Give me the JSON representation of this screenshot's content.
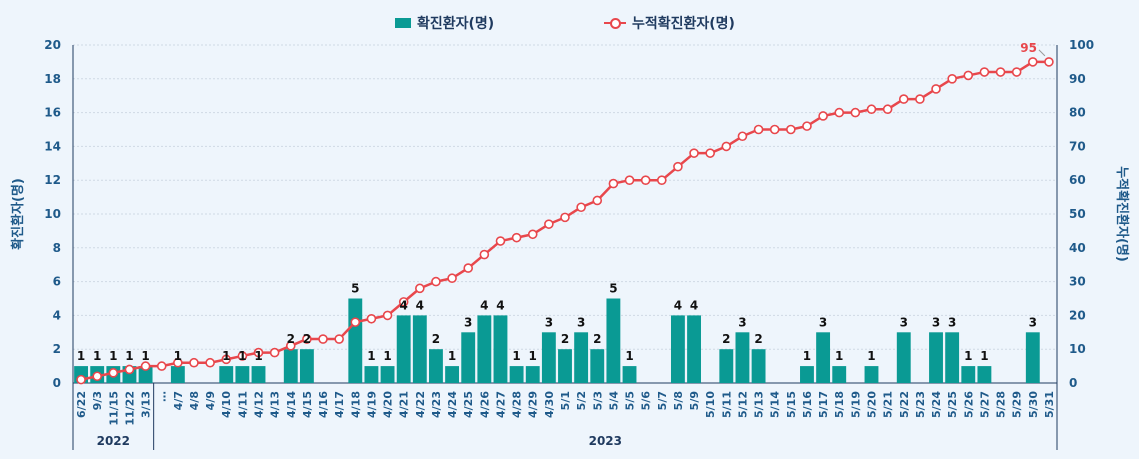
{
  "chart_data": {
    "type": "bar+line",
    "legend": {
      "bar_label": "확진환자(명)",
      "line_label": "누적확진환자(명)",
      "placement": "top-center"
    },
    "colors": {
      "bar": "#0a9a94",
      "line": "#e8474c",
      "axis_text": "#1f5a8a",
      "year_text": "#1f3a5f"
    },
    "ylabel_left": "확진환자(명)",
    "ylabel_right": "누적확진환자(명)",
    "ylim_left": [
      0,
      20
    ],
    "ylim_right": [
      0,
      100
    ],
    "yticks_left": [
      "0",
      "2",
      "4",
      "6",
      "8",
      "10",
      "12",
      "14",
      "16",
      "18",
      "20"
    ],
    "yticks_right": [
      "0",
      "10",
      "20",
      "30",
      "40",
      "50",
      "60",
      "70",
      "80",
      "90",
      "100"
    ],
    "grid": true,
    "categories": [
      "6/22",
      "9/3",
      "11/15",
      "11/22",
      "3/13",
      "…",
      "4/7",
      "4/8",
      "4/9",
      "4/10",
      "4/11",
      "4/12",
      "4/13",
      "4/14",
      "4/15",
      "4/16",
      "4/17",
      "4/18",
      "4/19",
      "4/20",
      "4/21",
      "4/22",
      "4/23",
      "4/24",
      "4/25",
      "4/26",
      "4/27",
      "4/28",
      "4/29",
      "4/30",
      "5/1",
      "5/2",
      "5/3",
      "5/4",
      "5/5",
      "5/6",
      "5/7",
      "5/8",
      "5/9",
      "5/10",
      "5/11",
      "5/12",
      "5/13",
      "5/14",
      "5/15",
      "5/16",
      "5/17",
      "5/18",
      "5/19",
      "5/20",
      "5/21",
      "5/22",
      "5/23",
      "5/24",
      "5/25",
      "5/26",
      "5/27",
      "5/28",
      "5/29",
      "5/30",
      "5/31"
    ],
    "bar_values": [
      1,
      1,
      1,
      1,
      1,
      0,
      1,
      0,
      0,
      1,
      1,
      1,
      0,
      2,
      2,
      0,
      0,
      5,
      1,
      1,
      4,
      4,
      2,
      1,
      3,
      4,
      4,
      1,
      1,
      3,
      2,
      3,
      2,
      5,
      1,
      0,
      0,
      4,
      4,
      0,
      2,
      3,
      2,
      0,
      0,
      1,
      3,
      1,
      0,
      1,
      0,
      3,
      0,
      3,
      3,
      1,
      1,
      0,
      0,
      3,
      0
    ],
    "bar_labels": [
      "1",
      "1",
      "1",
      "1",
      "1",
      "",
      "1",
      "",
      "",
      "1",
      "1",
      "1",
      "",
      "2",
      "2",
      "",
      "",
      "5",
      "1",
      "1",
      "4",
      "4",
      "2",
      "1",
      "3",
      "4",
      "4",
      "1",
      "1",
      "3",
      "2",
      "3",
      "2",
      "5",
      "1",
      "",
      "",
      "4",
      "4",
      "",
      "2",
      "3",
      "2",
      "",
      "",
      "1",
      "3",
      "1",
      "",
      "1",
      "",
      "3",
      "",
      "3",
      "3",
      "1",
      "1",
      "",
      "",
      "3",
      ""
    ],
    "line_values": [
      1,
      2,
      3,
      4,
      5,
      5,
      6,
      6,
      6,
      7,
      8,
      9,
      9,
      11,
      13,
      13,
      13,
      18,
      19,
      20,
      24,
      28,
      30,
      31,
      34,
      38,
      42,
      43,
      44,
      47,
      49,
      52,
      54,
      59,
      60,
      60,
      60,
      64,
      68,
      68,
      70,
      73,
      75,
      75,
      75,
      76,
      79,
      80,
      80,
      81,
      81,
      84,
      84,
      87,
      90,
      91,
      92,
      92,
      92,
      95,
      95
    ],
    "line_last_label": "95",
    "year_groups": [
      {
        "label": "2022",
        "start": 0,
        "end": 4
      },
      {
        "label": "2023",
        "start": 5,
        "end": 60
      }
    ]
  }
}
